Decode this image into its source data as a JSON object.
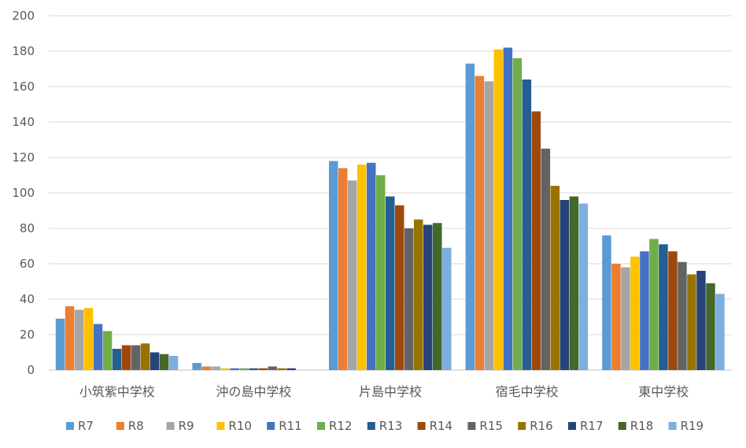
{
  "chart_data": {
    "type": "bar",
    "title": "",
    "xlabel": "",
    "ylabel": "",
    "ylim": [
      0,
      200
    ],
    "yticks": [
      0,
      20,
      40,
      60,
      80,
      100,
      120,
      140,
      160,
      180,
      200
    ],
    "grid": "horizontal",
    "legend_position": "bottom",
    "categories": [
      "小筑紫中学校",
      "沖の島中学校",
      "片島中学校",
      "宿毛中学校",
      "東中学校"
    ],
    "series": [
      {
        "name": "R7",
        "color": "#5B9BD5",
        "values": [
          29,
          4,
          118,
          173,
          76
        ]
      },
      {
        "name": "R8",
        "color": "#ED7D31",
        "values": [
          36,
          2,
          114,
          166,
          60
        ]
      },
      {
        "name": "R9",
        "color": "#A5A5A5",
        "values": [
          34,
          2,
          107,
          163,
          58
        ]
      },
      {
        "name": "R10",
        "color": "#FFC000",
        "values": [
          35,
          1,
          116,
          181,
          64
        ]
      },
      {
        "name": "R11",
        "color": "#4472C4",
        "values": [
          26,
          1,
          117,
          182,
          67
        ]
      },
      {
        "name": "R12",
        "color": "#70AD47",
        "values": [
          22,
          1,
          110,
          176,
          74
        ]
      },
      {
        "name": "R13",
        "color": "#255E91",
        "values": [
          12,
          1,
          98,
          164,
          71
        ]
      },
      {
        "name": "R14",
        "color": "#9E480E",
        "values": [
          14,
          1,
          93,
          146,
          67
        ]
      },
      {
        "name": "R15",
        "color": "#636363",
        "values": [
          14,
          2,
          80,
          125,
          61
        ]
      },
      {
        "name": "R16",
        "color": "#997300",
        "values": [
          15,
          1,
          85,
          104,
          54
        ]
      },
      {
        "name": "R17",
        "color": "#264478",
        "values": [
          10,
          1,
          82,
          96,
          56
        ]
      },
      {
        "name": "R18",
        "color": "#43682B",
        "values": [
          9,
          0,
          83,
          98,
          49
        ]
      },
      {
        "name": "R19",
        "color": "#7CAFDD",
        "values": [
          8,
          0,
          69,
          94,
          43
        ]
      }
    ]
  }
}
